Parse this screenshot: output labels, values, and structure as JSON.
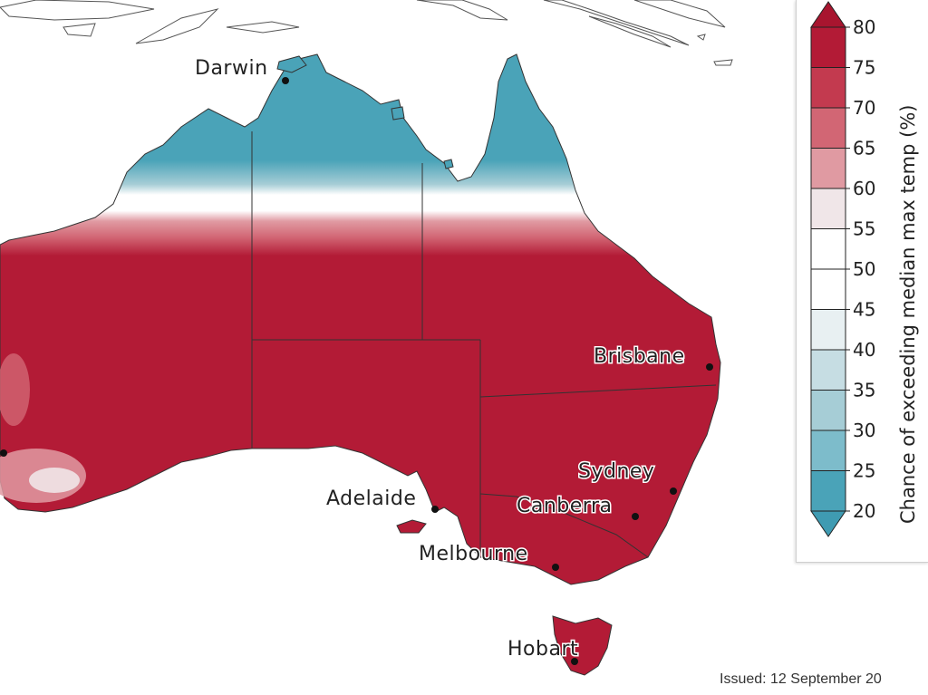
{
  "map": {
    "cities": [
      {
        "name": "Darwin"
      },
      {
        "name": "Brisbane"
      },
      {
        "name": "Sydney"
      },
      {
        "name": "Canberra"
      },
      {
        "name": "Adelaide"
      },
      {
        "name": "Melbourne"
      },
      {
        "name": "Hobart"
      }
    ]
  },
  "legend": {
    "title": "Chance of exceeding median max temp (%)",
    "ticks": [
      "80",
      "75",
      "70",
      "65",
      "60",
      "55",
      "50",
      "45",
      "40",
      "35",
      "30",
      "25",
      "20"
    ],
    "colors": [
      "#b31b36",
      "#c33a4f",
      "#d26674",
      "#e09aa2",
      "#f0e6e8",
      "#ffffff",
      "#ffffff",
      "#e8f0f2",
      "#c6dde3",
      "#a6cdd6",
      "#7dbccb",
      "#4aa3b8"
    ],
    "over_color": "#a8152f",
    "under_color": "#3f9bb2"
  },
  "footer": {
    "issued": "Issued: 12 September 20"
  },
  "colors": {
    "hot": "#b31b36",
    "cool": "#4aa3b8"
  }
}
